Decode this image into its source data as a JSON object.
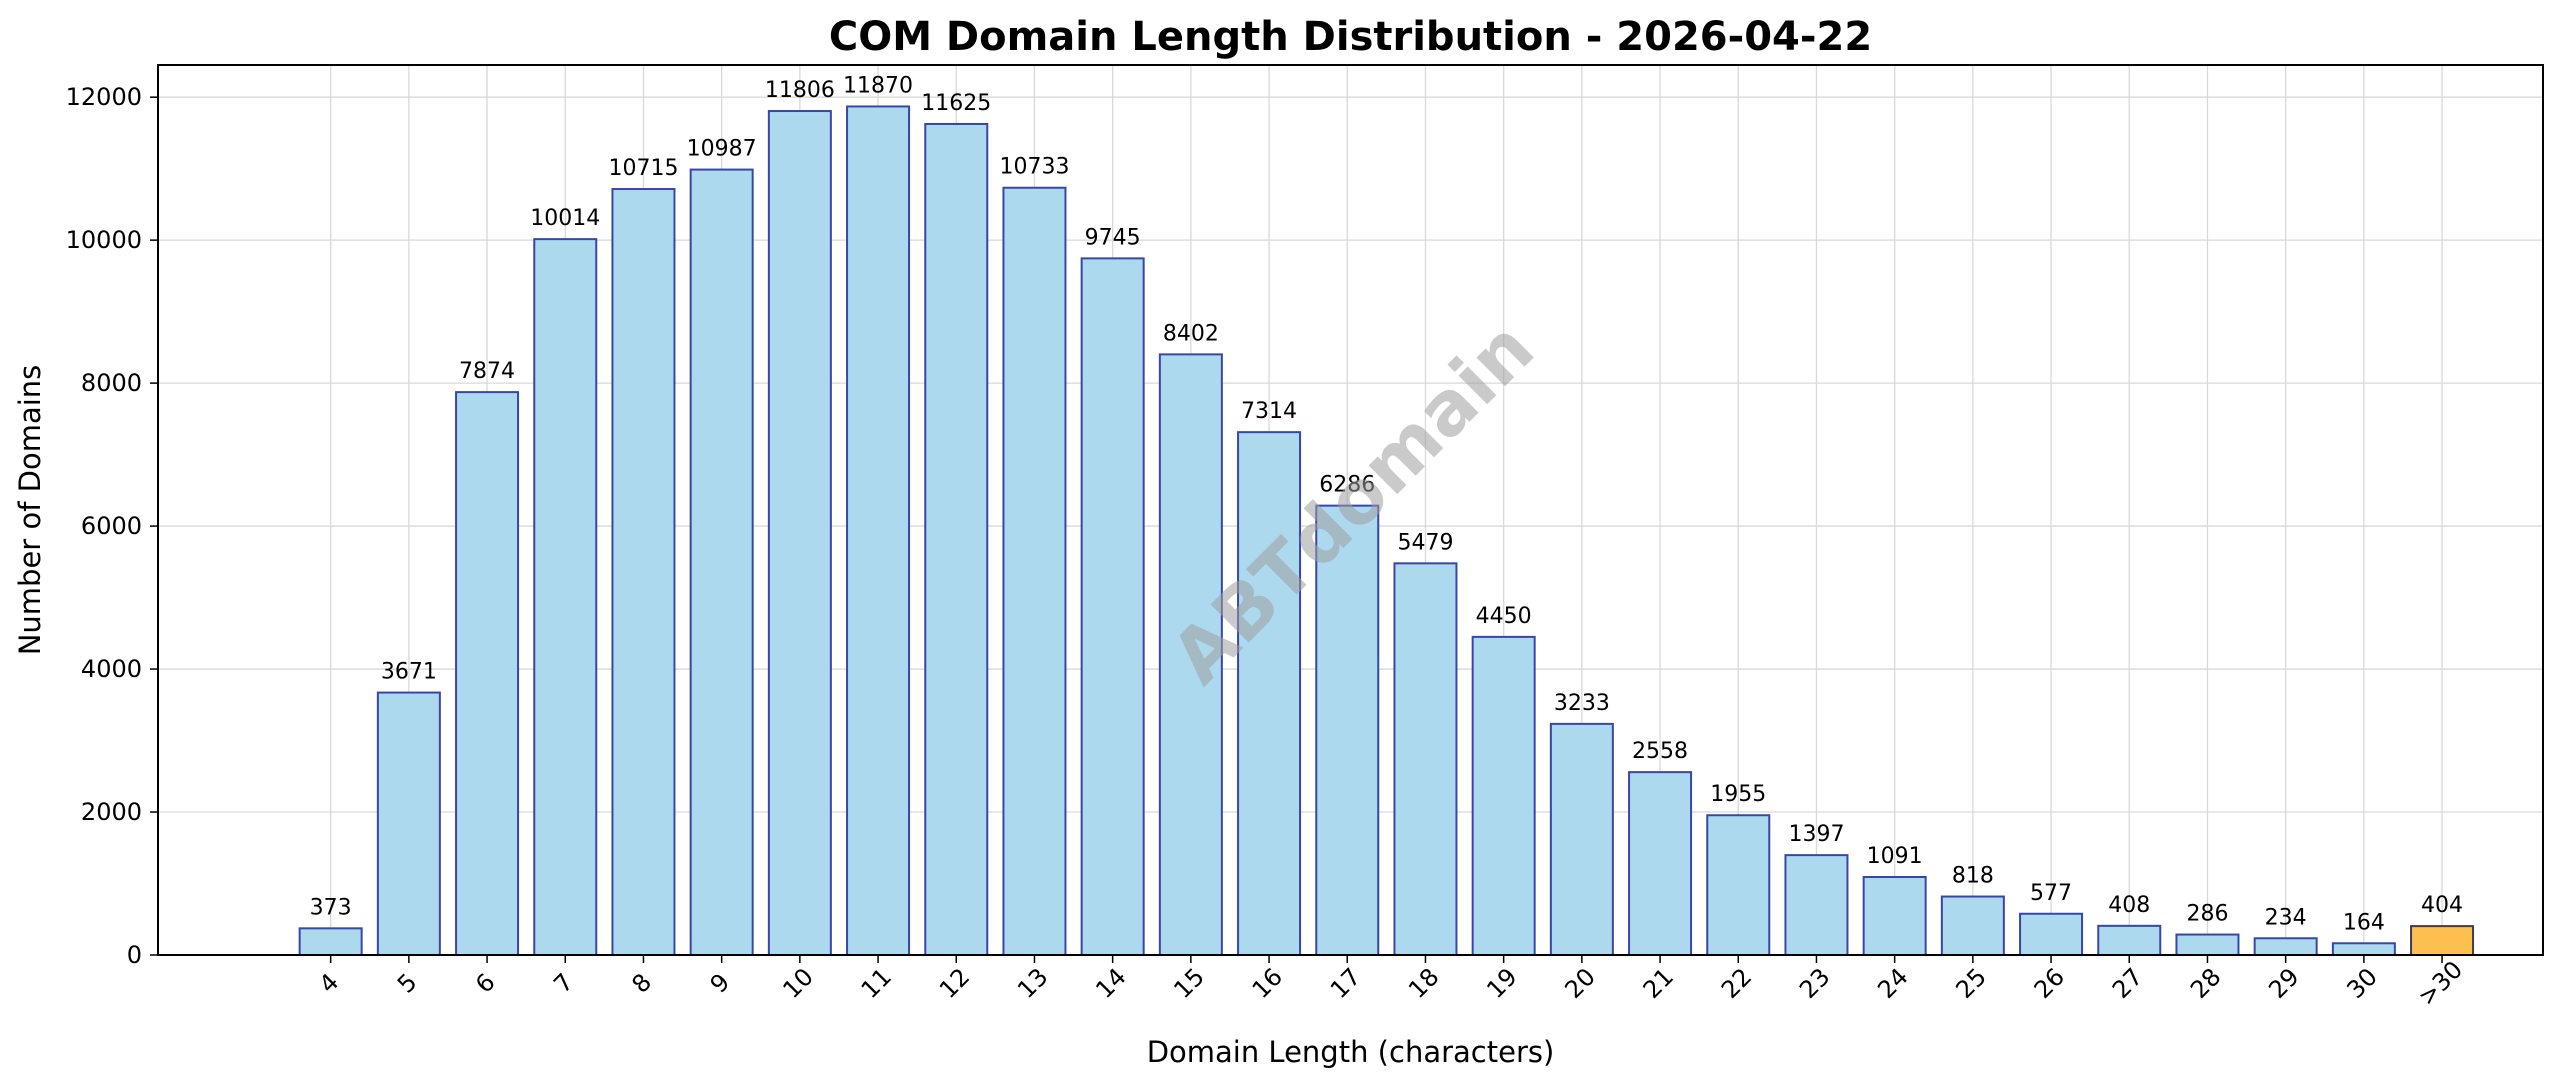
{
  "chart_data": {
    "type": "bar",
    "title": "COM Domain Length Distribution - 2026-04-22",
    "xlabel": "Domain Length (characters)",
    "ylabel": "Number of Domains",
    "categories": [
      "4",
      "5",
      "6",
      "7",
      "8",
      "9",
      "10",
      "11",
      "12",
      "13",
      "14",
      "15",
      "16",
      "17",
      "18",
      "19",
      "20",
      "21",
      "22",
      "23",
      "24",
      "25",
      "26",
      "27",
      "28",
      "29",
      "30",
      ">30"
    ],
    "values": [
      373,
      3671,
      7874,
      10014,
      10715,
      10987,
      11806,
      11870,
      11625,
      10733,
      9745,
      8402,
      7314,
      6286,
      5479,
      4450,
      3233,
      2558,
      1955,
      1397,
      1091,
      818,
      577,
      408,
      286,
      234,
      164,
      404
    ],
    "ylim": [
      0,
      12450
    ],
    "yticks": [
      0,
      2000,
      4000,
      6000,
      8000,
      10000,
      12000
    ],
    "grid": true,
    "colors": {
      "bar_fill": "#add9ef",
      "bar_edge": "#3846a8",
      "highlight_fill": "#fdbf4e",
      "highlight_edge": "#3a3a5a"
    },
    "highlight_category": ">30",
    "watermark": "ABTdomain"
  }
}
